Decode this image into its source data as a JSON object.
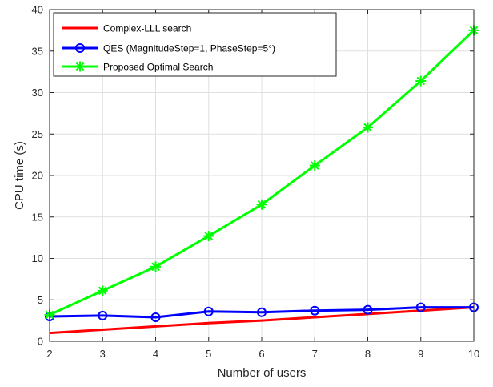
{
  "chart_data": {
    "type": "line",
    "xlabel": "Number of users",
    "ylabel": "CPU time (s)",
    "xlim": [
      2,
      10
    ],
    "ylim": [
      0,
      40
    ],
    "xticks": [
      2,
      3,
      4,
      5,
      6,
      7,
      8,
      9,
      10
    ],
    "yticks": [
      0,
      5,
      10,
      15,
      20,
      25,
      30,
      35,
      40
    ],
    "grid": true,
    "legend_position": "top-left",
    "x": [
      2,
      3,
      4,
      5,
      6,
      7,
      8,
      9,
      10
    ],
    "series": [
      {
        "name": "Complex-LLL search",
        "color": "#ff0000",
        "marker": "none",
        "values": [
          1.0,
          1.4,
          1.8,
          2.2,
          2.5,
          2.9,
          3.3,
          3.7,
          4.1
        ]
      },
      {
        "name": "QES (MagnitudeStep=1, PhaseStep=5°)",
        "color": "#0000ff",
        "marker": "circle",
        "values": [
          3.0,
          3.1,
          2.9,
          3.6,
          3.5,
          3.7,
          3.8,
          4.1,
          4.1
        ]
      },
      {
        "name": "Proposed Optimal Search",
        "color": "#00ff00",
        "marker": "asterisk",
        "values": [
          3.2,
          6.1,
          9.0,
          12.7,
          16.5,
          21.2,
          25.8,
          31.4,
          37.5
        ]
      }
    ]
  }
}
